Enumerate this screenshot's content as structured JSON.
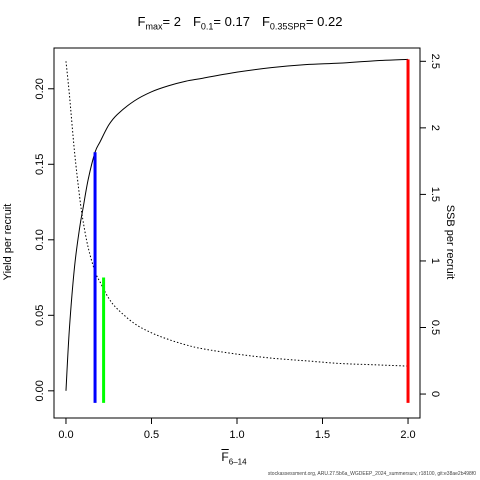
{
  "title": {
    "fmax_sym": "F",
    "fmax_sub": "max",
    "fmax_eq": "= 2",
    "f01_sym": "F",
    "f01_sub": "0.1",
    "f01_eq": "= 0.17",
    "fspr_sym": "F",
    "fspr_sub": "0.35SPR",
    "fspr_eq": "= 0.22"
  },
  "footer": "stockassessment.org, ARU.27.5b6a_WGDEEP_2024_summersurv, r18100, git:e38ae2b498f0",
  "chart_data": {
    "type": "line",
    "title": "",
    "xlabel": "F",
    "xlabel_sub": "6–14",
    "ylabel_left": "Yield per recruit",
    "ylabel_right": "SSB per recruit",
    "xlim": [
      -0.07,
      2.07
    ],
    "ylim_left": [
      -0.018,
      0.227
    ],
    "ylim_right": [
      -0.18,
      2.6
    ],
    "x_ticks": [
      0,
      0.5,
      1,
      1.5,
      2
    ],
    "x_tick_labels": [
      "0.0",
      "0.5",
      "1.0",
      "1.5",
      "2.0"
    ],
    "y_left_ticks": [
      0,
      0.05,
      0.1,
      0.15,
      0.2
    ],
    "y_left_tick_labels": [
      "0.00",
      "0.05",
      "0.10",
      "0.15",
      "0.20"
    ],
    "y_right_ticks": [
      0,
      0.5,
      1,
      1.5,
      2,
      2.5
    ],
    "y_right_tick_labels": [
      "0",
      "0.5",
      "1",
      "1.5",
      "2",
      "2.5"
    ],
    "grid": false,
    "series": [
      {
        "axis": "left",
        "style": "solid",
        "color": "#000000",
        "x": [
          0,
          0.02,
          0.05,
          0.08,
          0.1,
          0.13,
          0.17,
          0.2,
          0.25,
          0.3,
          0.4,
          0.5,
          0.6,
          0.7,
          0.8,
          1.0,
          1.2,
          1.4,
          1.6,
          1.8,
          2.0
        ],
        "y": [
          0,
          0.041,
          0.082,
          0.108,
          0.121,
          0.14,
          0.158,
          0.165,
          0.176,
          0.183,
          0.192,
          0.198,
          0.202,
          0.205,
          0.207,
          0.211,
          0.214,
          0.216,
          0.217,
          0.2185,
          0.2195
        ]
      },
      {
        "axis": "right",
        "style": "dotted",
        "color": "#000000",
        "x": [
          0,
          0.02,
          0.05,
          0.08,
          0.1,
          0.13,
          0.17,
          0.2,
          0.25,
          0.3,
          0.4,
          0.5,
          0.6,
          0.7,
          0.8,
          1.0,
          1.2,
          1.4,
          1.6,
          1.8,
          2.0
        ],
        "y": [
          2.5,
          2.25,
          1.82,
          1.48,
          1.3,
          1.1,
          0.92,
          0.84,
          0.72,
          0.64,
          0.53,
          0.46,
          0.41,
          0.37,
          0.34,
          0.3,
          0.27,
          0.25,
          0.23,
          0.22,
          0.21
        ]
      }
    ],
    "reference_lines": [
      {
        "name": "Fmax",
        "x": 2.0,
        "yield": 0.2195,
        "color": "#ff0000"
      },
      {
        "name": "F0.1",
        "x": 0.17,
        "yield": 0.158,
        "color": "#0000ff"
      },
      {
        "name": "F0.35SPR",
        "x": 0.22,
        "yield": 0.075,
        "color": "#00ff00"
      }
    ]
  }
}
